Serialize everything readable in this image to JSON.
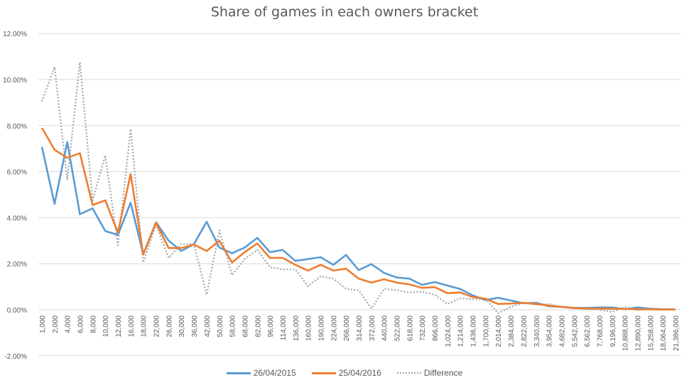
{
  "chart_data": {
    "type": "line",
    "title": "Share of games in each owners bracket",
    "xlabel": "",
    "ylabel": "",
    "ylim": [
      -0.02,
      0.12
    ],
    "yticks": [
      "-2.00%",
      "0.00%",
      "2.00%",
      "4.00%",
      "6.00%",
      "8.00%",
      "10.00%",
      "12.00%"
    ],
    "grid": true,
    "legend_position": "bottom",
    "categories": [
      "1,000",
      "2,000",
      "4,000",
      "6,000",
      "8,000",
      "10,000",
      "12,000",
      "16,000",
      "18,000",
      "22,000",
      "26,000",
      "30,000",
      "36,000",
      "42,000",
      "50,000",
      "58,000",
      "68,000",
      "82,000",
      "96,000",
      "114,000",
      "136,000",
      "160,000",
      "190,000",
      "224,000",
      "266,000",
      "314,000",
      "372,000",
      "440,000",
      "522,000",
      "618,000",
      "732,000",
      "866,000",
      "1,024,000",
      "1,214,000",
      "1,436,000",
      "1,700,000",
      "2,014,000",
      "2,384,000",
      "2,822,000",
      "3,340,000",
      "3,954,000",
      "4,682,000",
      "5,542,000",
      "6,562,000",
      "7,768,000",
      "9,196,000",
      "10,888,000",
      "12,890,000",
      "15,258,000",
      "18,064,000",
      "21,386,000"
    ],
    "series": [
      {
        "name": "26/04/2015",
        "color": "#5B9BD5",
        "style": "solid",
        "values": [
          0.0707,
          0.046,
          0.0728,
          0.0415,
          0.044,
          0.0342,
          0.0325,
          0.0465,
          0.024,
          0.038,
          0.03,
          0.0255,
          0.0285,
          0.0382,
          0.027,
          0.0245,
          0.027,
          0.0312,
          0.025,
          0.026,
          0.0212,
          0.022,
          0.0228,
          0.0195,
          0.0238,
          0.0172,
          0.0198,
          0.016,
          0.014,
          0.0135,
          0.0108,
          0.012,
          0.0105,
          0.009,
          0.0062,
          0.0042,
          0.0052,
          0.004,
          0.0028,
          0.003,
          0.0015,
          0.0012,
          0.0008,
          0.0008,
          0.001,
          0.001,
          0.0002,
          0.001,
          0.0004,
          0.0002,
          0.0001
        ]
      },
      {
        "name": "25/04/2016",
        "color": "#ED7D31",
        "style": "solid",
        "values": [
          0.079,
          0.0695,
          0.066,
          0.068,
          0.0455,
          0.0475,
          0.0335,
          0.059,
          0.024,
          0.0378,
          0.0268,
          0.0268,
          0.0283,
          0.0255,
          0.03,
          0.0205,
          0.025,
          0.0288,
          0.0225,
          0.0225,
          0.0195,
          0.017,
          0.0195,
          0.017,
          0.0178,
          0.0135,
          0.0118,
          0.0132,
          0.0118,
          0.011,
          0.0095,
          0.0098,
          0.0072,
          0.0075,
          0.0055,
          0.0048,
          0.0025,
          0.0027,
          0.003,
          0.0025,
          0.0018,
          0.0012,
          0.0008,
          0.0005,
          0.0005,
          0.0004,
          0.0003,
          0.0002,
          0.0002,
          0.0001,
          0.0001
        ]
      },
      {
        "name": "Difference",
        "color": "#A5A5A5",
        "style": "dotted",
        "values": [
          0.0905,
          0.1055,
          0.0565,
          0.1075,
          0.0475,
          0.067,
          0.028,
          0.0785,
          0.0205,
          0.037,
          0.0225,
          0.0285,
          0.0285,
          0.0065,
          0.0345,
          0.015,
          0.022,
          0.026,
          0.0185,
          0.0175,
          0.0175,
          0.0102,
          0.0145,
          0.0135,
          0.009,
          0.0085,
          0.0005,
          0.009,
          0.0085,
          0.0075,
          0.0078,
          0.0065,
          0.0025,
          0.005,
          0.0045,
          0.0048,
          -0.0015,
          0.0012,
          0.003,
          0.0022,
          0.0025,
          0.0012,
          0.0005,
          0.0002,
          0.0,
          -0.001,
          0.0012,
          -0.0002,
          0.0005,
          0.0002,
          0.0
        ]
      }
    ]
  },
  "legend": {
    "items": [
      {
        "label": "26/04/2015",
        "color": "#5B9BD5",
        "style": "solid"
      },
      {
        "label": "25/04/2016",
        "color": "#ED7D31",
        "style": "solid"
      },
      {
        "label": "Difference",
        "color": "#A5A5A5",
        "style": "dotted"
      }
    ]
  }
}
